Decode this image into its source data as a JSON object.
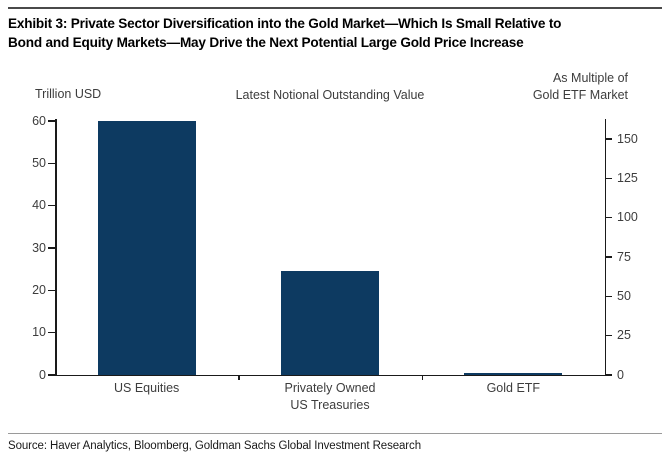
{
  "exhibit": {
    "title_lines": [
      "Exhibit 3: Private Sector Diversification into the Gold Market—Which Is Small Relative to",
      "Bond and Equity Markets—May Drive the Next Potential Large Gold Price Increase"
    ],
    "source": "Source: Haver Analytics, Bloomberg, Goldman Sachs Global Investment Research"
  },
  "chart_data": {
    "type": "bar",
    "title": "Latest Notional Outstanding Value",
    "left_axis": {
      "label": "Trillion USD",
      "ticks": [
        0,
        10,
        20,
        30,
        40,
        50,
        60
      ],
      "min": 0,
      "max": 60
    },
    "right_axis": {
      "label_lines": [
        "As Multiple of",
        "Gold ETF Market"
      ],
      "ticks": [
        0,
        25,
        50,
        75,
        100,
        125,
        150
      ],
      "min": 0,
      "max": 150
    },
    "categories": [
      [
        "US Equities"
      ],
      [
        "Privately Owned",
        "US Treasuries"
      ],
      [
        "Gold ETF"
      ]
    ],
    "values": [
      60,
      24.5,
      0.4
    ],
    "bar_color": "#0d3a61",
    "grid": false,
    "legend": false
  }
}
